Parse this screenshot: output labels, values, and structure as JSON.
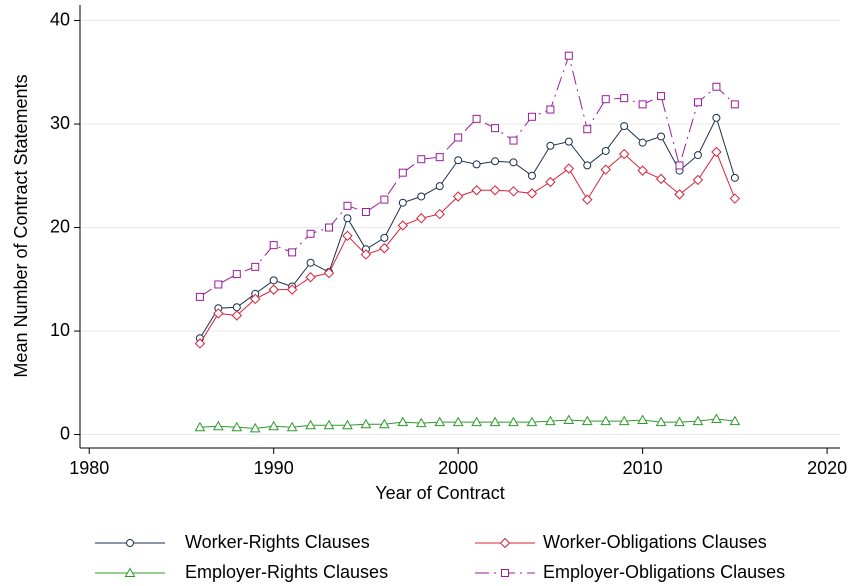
{
  "chart_data": {
    "type": "line",
    "x_label": "Year of Contract",
    "y_label": "Mean Number of Contract Statements",
    "x": [
      1986,
      1987,
      1988,
      1989,
      1990,
      1991,
      1992,
      1993,
      1994,
      1995,
      1996,
      1997,
      1998,
      1999,
      2000,
      2001,
      2002,
      2003,
      2004,
      2005,
      2006,
      2007,
      2008,
      2009,
      2010,
      2011,
      2012,
      2013,
      2014,
      2015
    ],
    "series": [
      {
        "name": "Worker-Rights Clauses",
        "color": "#1c2f4f",
        "marker": "circle",
        "dash": "solid",
        "values": [
          9.3,
          12.2,
          12.3,
          13.6,
          14.9,
          14.3,
          16.6,
          15.7,
          20.9,
          17.9,
          19.0,
          22.4,
          23.0,
          24.0,
          26.5,
          26.1,
          26.4,
          26.3,
          25.0,
          27.9,
          28.3,
          26.0,
          27.4,
          29.8,
          28.2,
          28.8,
          25.5,
          27.0,
          30.6,
          24.8
        ]
      },
      {
        "name": "Worker-Obligations Clauses",
        "color": "#d6233a",
        "marker": "diamond",
        "dash": "solid",
        "values": [
          8.8,
          11.7,
          11.5,
          13.1,
          14.0,
          14.0,
          15.2,
          15.6,
          19.2,
          17.4,
          18.0,
          20.2,
          20.9,
          21.3,
          23.0,
          23.6,
          23.6,
          23.5,
          23.3,
          24.4,
          25.7,
          22.7,
          25.6,
          27.1,
          25.5,
          24.7,
          23.2,
          24.6,
          27.3,
          22.8
        ]
      },
      {
        "name": "Employer-Rights Clauses",
        "color": "#2e9a2a",
        "marker": "triangle",
        "dash": "solid",
        "values": [
          0.7,
          0.8,
          0.7,
          0.6,
          0.8,
          0.7,
          0.9,
          0.9,
          0.9,
          1.0,
          1.0,
          1.2,
          1.1,
          1.2,
          1.2,
          1.2,
          1.2,
          1.2,
          1.2,
          1.3,
          1.4,
          1.3,
          1.3,
          1.3,
          1.4,
          1.2,
          1.2,
          1.3,
          1.5,
          1.3
        ]
      },
      {
        "name": "Employer-Obligations Clauses",
        "color": "#9a1d9a",
        "marker": "square",
        "dash": "dash-dot",
        "values": [
          13.3,
          14.5,
          15.5,
          16.2,
          18.3,
          17.6,
          19.4,
          20.0,
          22.1,
          21.5,
          22.7,
          25.3,
          26.6,
          26.8,
          28.7,
          30.5,
          29.6,
          28.4,
          30.7,
          31.4,
          36.6,
          29.5,
          32.4,
          32.5,
          31.9,
          32.7,
          26.0,
          32.1,
          33.6,
          31.9
        ]
      }
    ],
    "xlim": [
      1979.5,
      2020.7
    ],
    "xticks": [
      1980,
      1990,
      2000,
      2010,
      2020
    ],
    "ylim": [
      -1.3,
      41.5
    ],
    "yticks": [
      0,
      10,
      20,
      30,
      40
    ],
    "grid": true,
    "legend_position": "bottom"
  }
}
